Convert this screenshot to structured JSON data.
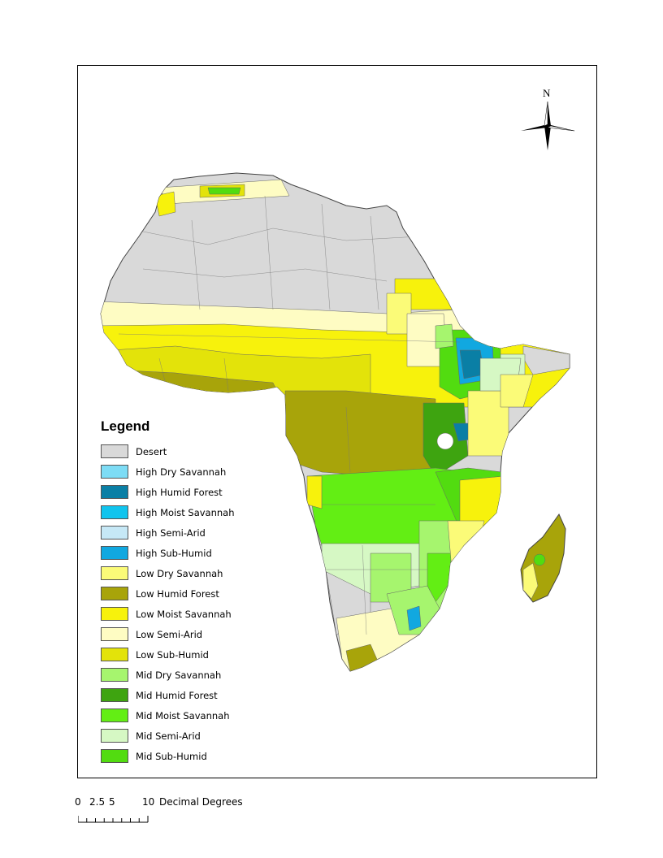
{
  "legend": {
    "title": "Legend",
    "items": [
      {
        "label": "Desert",
        "color": "#d9d9d9"
      },
      {
        "label": "High Dry Savannah",
        "color": "#7ddcf5"
      },
      {
        "label": "High Humid Forest",
        "color": "#0a7fa5"
      },
      {
        "label": "High Moist Savannah",
        "color": "#10c4ee"
      },
      {
        "label": "High Semi-Arid",
        "color": "#c6e8f6"
      },
      {
        "label": "High Sub-Humid",
        "color": "#11a8e0"
      },
      {
        "label": "Low Dry Savannah",
        "color": "#fbfb78"
      },
      {
        "label": "Low Humid Forest",
        "color": "#a8a40a"
      },
      {
        "label": "Low Moist Savannah",
        "color": "#f7f20c"
      },
      {
        "label": "Low Semi-Arid",
        "color": "#fefcc3"
      },
      {
        "label": "Low Sub-Humid",
        "color": "#e3e30a"
      },
      {
        "label": "Mid Dry Savannah",
        "color": "#a6f56e"
      },
      {
        "label": "Mid Humid Forest",
        "color": "#3ea410"
      },
      {
        "label": "Mid Moist Savannah",
        "color": "#63ee14"
      },
      {
        "label": "Mid Semi-Arid",
        "color": "#d6f8c4"
      },
      {
        "label": "Mid Sub-Humid",
        "color": "#52dc10"
      }
    ]
  },
  "north_arrow": {
    "label": "N"
  },
  "scale_bar": {
    "ticks": [
      "0",
      "2.5",
      "5",
      "10"
    ],
    "units": "Decimal Degrees"
  }
}
